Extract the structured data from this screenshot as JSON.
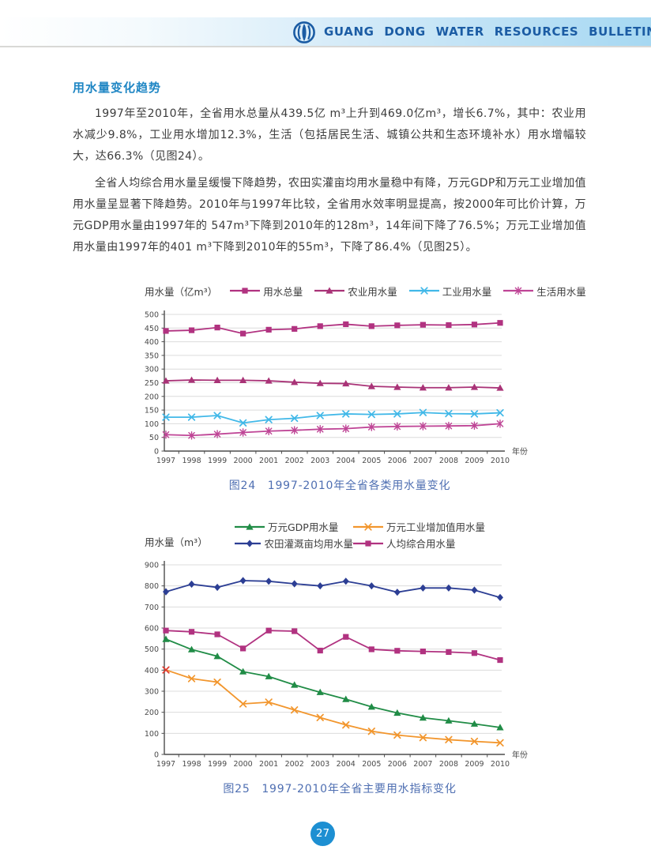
{
  "header": {
    "title": "GUANG DONG WATER RESOURCES BULLETIN",
    "logo_icon": "water-bulletin-logo"
  },
  "section": {
    "title": "用水量变化趋势"
  },
  "paragraphs": [
    "1997年至2010年，全省用水总量从439.5亿 m³上升到469.0亿m³，增长6.7%，其中：农业用水减少9.8%，工业用水增加12.3%，生活（包括居民生活、城镇公共和生态环境补水）用水增幅较大，达66.3%（见图24）。",
    "全省人均综合用水量呈缓慢下降趋势，农田实灌亩均用水量稳中有降，万元GDP和万元工业增加值用水量呈显著下降趋势。2010年与1997年比较，全省用水效率明显提高，按2000年可比价计算，万元GDP用水量由1997年的 547m³下降到2010年的128m³，14年间下降了76.5%；万元工业增加值用水量由1997年的401 m³下降到2010年的55m³，下降了86.4%（见图25）。"
  ],
  "chart_data": [
    {
      "type": "line",
      "title": "图24　1997-2010年全省各类用水量变化",
      "ylabel": "用水量（亿m³）",
      "xlabel": "年份",
      "categories": [
        "1997",
        "1998",
        "1999",
        "2000",
        "2001",
        "2002",
        "2003",
        "2004",
        "2005",
        "2006",
        "2007",
        "2008",
        "2009",
        "2010"
      ],
      "ylim": [
        0,
        500
      ],
      "ystep": 50,
      "grid": true,
      "legend_position": "top",
      "series": [
        {
          "name": "用水总量",
          "marker": "square",
          "color": "#b13280",
          "values": [
            439.5,
            442,
            452,
            430,
            444,
            447,
            457,
            464,
            457,
            460,
            462,
            461,
            463,
            469
          ]
        },
        {
          "name": "农业用水量",
          "marker": "triangle",
          "color": "#a93377",
          "values": [
            257,
            260,
            259,
            259,
            257,
            252,
            248,
            247,
            237,
            234,
            232,
            232,
            234,
            231
          ]
        },
        {
          "name": "工业用水量",
          "marker": "x",
          "color": "#41b8e8",
          "values": [
            124,
            124,
            130,
            103,
            115,
            120,
            130,
            136,
            134,
            136,
            141,
            137,
            136,
            140
          ]
        },
        {
          "name": "生活用水量",
          "marker": "asterisk",
          "color": "#bf4596",
          "values": [
            60,
            57,
            62,
            68,
            73,
            76,
            80,
            82,
            88,
            90,
            91,
            92,
            93,
            100
          ]
        }
      ]
    },
    {
      "type": "line",
      "title": "图25　1997-2010年全省主要用水指标变化",
      "ylabel": "用水量（m³）",
      "xlabel": "年份",
      "categories": [
        "1997",
        "1998",
        "1999",
        "2000",
        "2001",
        "2002",
        "2003",
        "2004",
        "2005",
        "2006",
        "2007",
        "2008",
        "2009",
        "2010"
      ],
      "ylim": [
        0,
        900
      ],
      "ystep": 100,
      "grid": true,
      "legend_position": "top",
      "series": [
        {
          "name": "万元GDP用水量",
          "marker": "triangle",
          "color": "#208c46",
          "values": [
            547,
            498,
            466,
            393,
            370,
            330,
            295,
            262,
            226,
            197,
            174,
            160,
            145,
            128
          ]
        },
        {
          "name": "万元工业增加值用水量",
          "marker": "x",
          "color": "#f2962d",
          "first_point_marker_color": "#e03c31",
          "values": [
            401,
            360,
            343,
            240,
            248,
            211,
            175,
            140,
            110,
            92,
            80,
            70,
            62,
            55
          ]
        },
        {
          "name": "农田灌溉亩均用水量",
          "marker": "diamond",
          "color": "#2c3e94",
          "values": [
            772,
            808,
            793,
            825,
            822,
            810,
            800,
            822,
            800,
            770,
            790,
            790,
            780,
            745
          ]
        },
        {
          "name": "人均综合用水量",
          "marker": "square",
          "color": "#b13280",
          "values": [
            588,
            582,
            570,
            503,
            588,
            585,
            493,
            558,
            499,
            492,
            489,
            486,
            481,
            448
          ]
        }
      ]
    }
  ],
  "page_number": "27",
  "colors": {
    "header_text": "#1b5ca4",
    "header_band_end": "#a6d8f2",
    "section_title": "#1f86c4",
    "caption": "#4f6fb2",
    "body_text": "#3c3c3c",
    "page_badge": "#1d8fd2",
    "axis": "#4d4d4d",
    "gridline": "#dcdcdc"
  }
}
